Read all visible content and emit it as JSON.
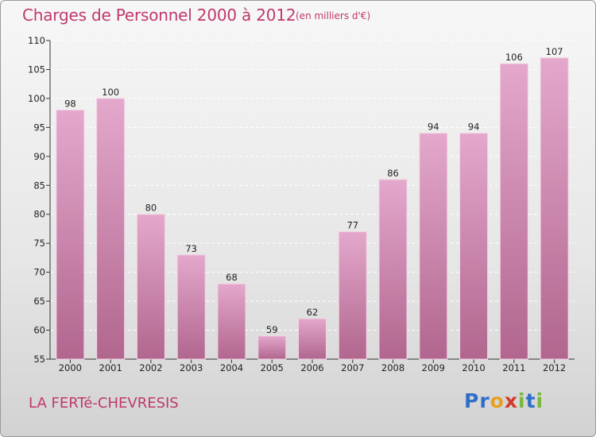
{
  "header": {
    "title": "Charges de Personnel 2000 à 2012",
    "subtitle": "(en milliers d'€)"
  },
  "footer": {
    "town": "LA FERTé-CHEVRESIS",
    "logo_letters": [
      "P",
      "r",
      "o",
      "x",
      "i",
      "t",
      "i"
    ],
    "logo_colors": [
      "#2f6fc6",
      "#2f6fc6",
      "#e8a020",
      "#d23a2a",
      "#7ab83a",
      "#2f6fc6",
      "#7ab83a"
    ]
  },
  "colors": {
    "accent": "#c0386e",
    "bar_top": "#e4a8cc",
    "bar_bottom": "#b1668e"
  },
  "chart_data": {
    "type": "bar",
    "categories": [
      "2000",
      "2001",
      "2002",
      "2003",
      "2004",
      "2005",
      "2006",
      "2007",
      "2008",
      "2009",
      "2010",
      "2011",
      "2012"
    ],
    "values": [
      98,
      100,
      80,
      73,
      68,
      59,
      62,
      77,
      86,
      94,
      94,
      106,
      107
    ],
    "data_labels": [
      "98",
      "100",
      "80",
      "73",
      "68",
      "59",
      "62",
      "77",
      "86",
      "94",
      "94",
      "106",
      "107"
    ],
    "title": "Charges de Personnel 2000 à 2012",
    "xlabel": "",
    "ylabel": "",
    "ylim": [
      55,
      110
    ],
    "yticks": [
      55,
      60,
      65,
      70,
      75,
      80,
      85,
      90,
      95,
      100,
      105,
      110
    ],
    "grid": true,
    "legend": false
  }
}
